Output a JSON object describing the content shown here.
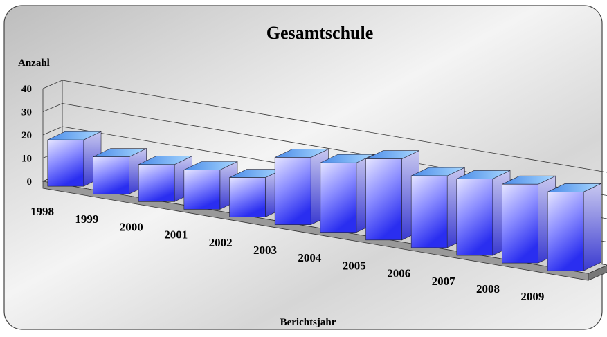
{
  "chart_data": {
    "type": "bar3d",
    "title": "Gesamtschule",
    "y_label": "Anzahl",
    "x_label": "Berichtsjahr",
    "categories": [
      "1998",
      "1999",
      "2000",
      "2001",
      "2002",
      "2003",
      "2004",
      "2005",
      "2006",
      "2007",
      "2008",
      "2009"
    ],
    "values": [
      20,
      16,
      16,
      17,
      17,
      29,
      30,
      35,
      31,
      33,
      34,
      34
    ],
    "color": "#3c4cf0",
    "ylim": [
      0,
      40
    ],
    "yticks": [
      0,
      10,
      20,
      30,
      40
    ],
    "grid": true
  }
}
